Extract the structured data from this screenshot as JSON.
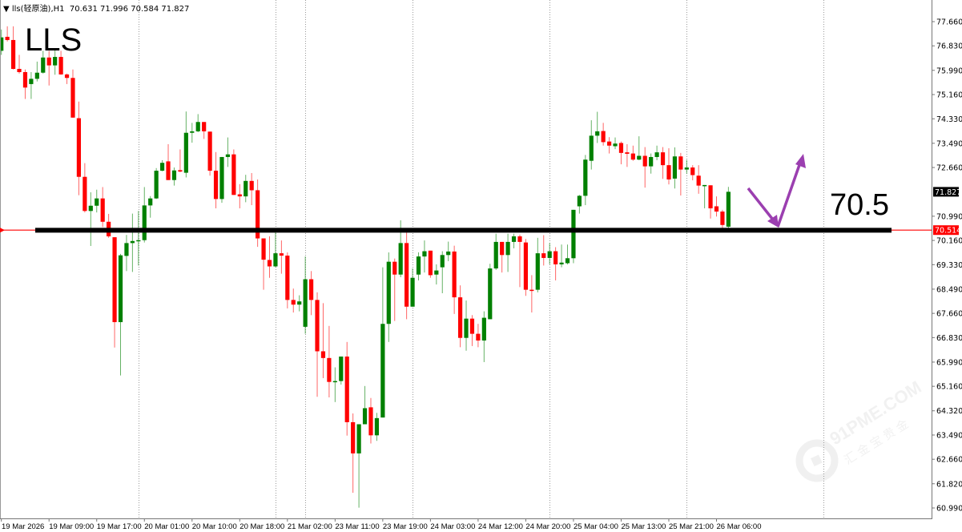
{
  "header": {
    "dropdown_icon": "triangle-down-icon",
    "symbol": "lls(轻原油),H1",
    "ohlc": "70.631 71.996 70.584 71.827"
  },
  "annotations": {
    "title_text": "LLS",
    "level_text": "70.5",
    "level_price": 70.5,
    "arrow_color": "#9b3fb0"
  },
  "watermark": {
    "text": "91PME.COM",
    "subtext": "汇金宝贵金属"
  },
  "colors": {
    "bull": "#008000",
    "bear": "#ff0000",
    "level_line": "#000000",
    "bid_line": "#ff0000"
  },
  "chart_data": {
    "type": "candlestick",
    "timeframe": "H1",
    "ylim": [
      60.99,
      77.66
    ],
    "grid": false,
    "y_ticks": [
      "77.660",
      "76.830",
      "75.990",
      "75.160",
      "74.330",
      "73.490",
      "72.660",
      "70.990",
      "70.160",
      "69.330",
      "68.490",
      "67.660",
      "66.830",
      "65.990",
      "65.160",
      "64.320",
      "63.490",
      "62.660",
      "61.820",
      "60.990"
    ],
    "x_ticks": [
      "19 Mar 2026",
      "19 Mar 09:00",
      "19 Mar 17:00",
      "20 Mar 01:00",
      "20 Mar 10:00",
      "20 Mar 18:00",
      "21 Mar 02:00",
      "23 Mar 11:00",
      "23 Mar 19:00",
      "24 Mar 03:00",
      "24 Mar 12:00",
      "24 Mar 20:00",
      "25 Mar 04:00",
      "25 Mar 13:00",
      "25 Mar 21:00",
      "26 Mar 06:00"
    ],
    "current_price": "71.827",
    "bid_line_price": "70.514",
    "horizontal_level": 70.51,
    "ohlc_fields": [
      "open",
      "high",
      "low",
      "close"
    ],
    "candles": [
      [
        76.66,
        77.39,
        76.52,
        77.12
      ],
      [
        77.14,
        77.5,
        76.98,
        77.03
      ],
      [
        77.03,
        77.5,
        76.02,
        76.04
      ],
      [
        76.04,
        76.52,
        75.88,
        75.93
      ],
      [
        75.93,
        76.02,
        75.01,
        75.4
      ],
      [
        75.52,
        75.93,
        75.01,
        75.7
      ],
      [
        75.7,
        76.29,
        75.61,
        75.91
      ],
      [
        75.91,
        76.66,
        75.88,
        76.43
      ],
      [
        76.43,
        76.66,
        75.47,
        76.16
      ],
      [
        76.16,
        76.71,
        75.84,
        76.45
      ],
      [
        76.45,
        76.66,
        75.84,
        75.85
      ],
      [
        75.85,
        75.88,
        75.52,
        75.73
      ],
      [
        75.73,
        76.02,
        74.37,
        74.37
      ],
      [
        74.35,
        74.92,
        71.71,
        72.34
      ],
      [
        72.34,
        72.81,
        71.12,
        71.17
      ],
      [
        71.17,
        71.81,
        69.97,
        71.35
      ],
      [
        71.35,
        71.9,
        71.12,
        71.6
      ],
      [
        71.6,
        71.99,
        70.62,
        70.8
      ],
      [
        70.8,
        71.07,
        70.25,
        70.3
      ],
      [
        70.27,
        70.27,
        66.49,
        67.36
      ],
      [
        67.36,
        69.7,
        65.53,
        69.65
      ],
      [
        69.63,
        70.35,
        69.11,
        70.07
      ],
      [
        70.07,
        71.08,
        69.08,
        70.14
      ],
      [
        70.14,
        71.17,
        69.3,
        70.17
      ],
      [
        70.17,
        71.99,
        70.09,
        71.36
      ],
      [
        71.36,
        71.68,
        70.94,
        71.6
      ],
      [
        71.6,
        72.64,
        71.58,
        72.55
      ],
      [
        72.55,
        72.91,
        72.53,
        72.82
      ],
      [
        72.87,
        73.46,
        72.23,
        72.23
      ],
      [
        72.23,
        72.66,
        72.04,
        72.56
      ],
      [
        72.57,
        73.28,
        72.5,
        72.52
      ],
      [
        72.48,
        74.58,
        72.32,
        73.85
      ],
      [
        73.85,
        74.19,
        73.51,
        73.9
      ],
      [
        73.9,
        74.49,
        73.87,
        74.22
      ],
      [
        74.22,
        74.22,
        73.64,
        73.9
      ],
      [
        73.89,
        73.89,
        72.38,
        72.55
      ],
      [
        72.55,
        73.19,
        71.26,
        71.58
      ],
      [
        71.58,
        73.02,
        71.45,
        73.02
      ],
      [
        73.02,
        73.69,
        72.68,
        73.11
      ],
      [
        73.11,
        73.28,
        71.72,
        71.72
      ],
      [
        71.74,
        72.09,
        71.26,
        71.67
      ],
      [
        71.67,
        72.41,
        71.47,
        72.2
      ],
      [
        72.2,
        72.47,
        71.37,
        71.88
      ],
      [
        71.88,
        72.25,
        69.94,
        70.23
      ],
      [
        70.23,
        70.23,
        68.47,
        69.5
      ],
      [
        69.49,
        70.3,
        68.88,
        69.27
      ],
      [
        69.27,
        70.45,
        69.24,
        69.72
      ],
      [
        69.72,
        70.16,
        69.02,
        69.64
      ],
      [
        69.64,
        69.75,
        67.83,
        68.12
      ],
      [
        68.12,
        68.51,
        67.69,
        67.96
      ],
      [
        67.96,
        68.28,
        67.73,
        68.07
      ],
      [
        67.2,
        69.61,
        66.96,
        68.83
      ],
      [
        68.83,
        69.11,
        67.6,
        68.12
      ],
      [
        68.12,
        68.38,
        64.8,
        66.36
      ],
      [
        66.36,
        68.01,
        65.44,
        66.13
      ],
      [
        66.13,
        67.23,
        64.78,
        65.31
      ],
      [
        65.31,
        65.81,
        64.62,
        65.34
      ],
      [
        65.34,
        66.18,
        65.22,
        66.18
      ],
      [
        66.18,
        66.68,
        63.47,
        63.93
      ],
      [
        63.93,
        64.23,
        61.51,
        62.86
      ],
      [
        62.86,
        63.86,
        61.0,
        63.86
      ],
      [
        63.86,
        65.17,
        63.86,
        64.41
      ],
      [
        64.44,
        64.76,
        63.2,
        63.48
      ],
      [
        63.48,
        64.25,
        63.29,
        64.07
      ],
      [
        64.09,
        69.24,
        64.09,
        67.3
      ],
      [
        67.3,
        69.75,
        66.68,
        69.43
      ],
      [
        69.43,
        69.54,
        67.4,
        68.99
      ],
      [
        68.99,
        70.85,
        68.9,
        70.07
      ],
      [
        70.07,
        70.44,
        67.46,
        67.89
      ],
      [
        67.89,
        69.2,
        67.89,
        68.88
      ],
      [
        68.99,
        69.75,
        68.79,
        69.61
      ],
      [
        69.61,
        70.16,
        69.06,
        69.79
      ],
      [
        69.81,
        69.81,
        68.88,
        68.97
      ],
      [
        68.99,
        69.34,
        68.65,
        69.13
      ],
      [
        69.24,
        69.79,
        68.35,
        69.66
      ],
      [
        69.66,
        70.12,
        69.45,
        69.78
      ],
      [
        69.78,
        69.98,
        67.64,
        68.21
      ],
      [
        68.21,
        68.62,
        66.5,
        66.82
      ],
      [
        66.82,
        68.1,
        66.38,
        67.48
      ],
      [
        67.48,
        67.6,
        66.54,
        66.96
      ],
      [
        66.96,
        67.3,
        66.5,
        66.73
      ],
      [
        66.73,
        67.73,
        65.99,
        67.51
      ],
      [
        67.46,
        69.36,
        67.46,
        69.2
      ],
      [
        69.2,
        70.39,
        69.15,
        70.11
      ],
      [
        70.11,
        70.11,
        69.06,
        69.66
      ],
      [
        69.66,
        70.39,
        69.08,
        70.11
      ],
      [
        70.11,
        70.39,
        69.89,
        70.3
      ],
      [
        70.3,
        70.36,
        68.56,
        70.11
      ],
      [
        70.09,
        70.21,
        68.26,
        68.47
      ],
      [
        68.47,
        68.97,
        67.69,
        68.44
      ],
      [
        68.47,
        70.25,
        68.38,
        69.72
      ],
      [
        69.72,
        70.34,
        69.3,
        69.56
      ],
      [
        69.56,
        70.07,
        69.34,
        69.79
      ],
      [
        69.79,
        69.93,
        68.79,
        69.34
      ],
      [
        69.34,
        70.02,
        69.24,
        69.4
      ],
      [
        69.38,
        70.02,
        69.34,
        69.55
      ],
      [
        69.55,
        71.21,
        69.38,
        71.21
      ],
      [
        71.33,
        71.72,
        71.08,
        71.69
      ],
      [
        71.69,
        73.09,
        71.37,
        72.93
      ],
      [
        72.89,
        74.28,
        72.59,
        73.75
      ],
      [
        73.75,
        74.57,
        73.5,
        73.9
      ],
      [
        73.91,
        74.19,
        73.41,
        73.53
      ],
      [
        73.55,
        73.7,
        73.14,
        73.41
      ],
      [
        73.39,
        73.69,
        73.29,
        73.48
      ],
      [
        73.5,
        73.55,
        72.77,
        73.16
      ],
      [
        73.18,
        73.46,
        72.68,
        73.13
      ],
      [
        73.14,
        73.41,
        72.89,
        72.93
      ],
      [
        72.93,
        73.73,
        72.91,
        73.06
      ],
      [
        73.06,
        73.36,
        71.97,
        72.7
      ],
      [
        72.7,
        73.14,
        72.45,
        73.02
      ],
      [
        73.02,
        73.41,
        72.91,
        73.18
      ],
      [
        73.18,
        73.36,
        72.27,
        72.74
      ],
      [
        72.74,
        73.32,
        72.08,
        72.25
      ],
      [
        72.28,
        73.35,
        71.94,
        73.04
      ],
      [
        73.04,
        73.16,
        71.7,
        72.59
      ],
      [
        72.59,
        72.92,
        72.45,
        72.66
      ],
      [
        72.66,
        72.74,
        72.22,
        72.4
      ],
      [
        72.38,
        72.74,
        71.76,
        72.04
      ],
      [
        72.02,
        72.06,
        71.26,
        72.06
      ],
      [
        72.05,
        72.05,
        70.91,
        71.26
      ],
      [
        71.33,
        71.67,
        70.98,
        71.15
      ],
      [
        71.15,
        71.21,
        70.57,
        70.69
      ],
      [
        70.631,
        71.996,
        70.584,
        71.827
      ]
    ]
  }
}
